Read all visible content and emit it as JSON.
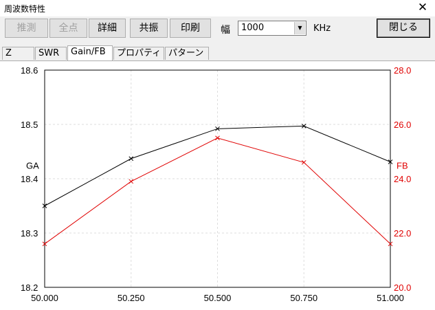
{
  "window": {
    "title": "周波数特性",
    "close_glyph": "✕"
  },
  "toolbar": {
    "buttons": [
      {
        "label": "推測",
        "enabled": false
      },
      {
        "label": "全点",
        "enabled": false
      },
      {
        "label": "詳細",
        "enabled": true
      },
      {
        "label": "共振",
        "enabled": true
      },
      {
        "label": "印刷",
        "enabled": true
      }
    ],
    "width_label": "幅",
    "width_value": "1000",
    "unit_label": "KHz",
    "close_button": "閉じる"
  },
  "tabs": [
    {
      "label": "Z",
      "active": false
    },
    {
      "label": "SWR",
      "active": false
    },
    {
      "label": "Gain/FB",
      "active": true
    },
    {
      "label": "プロパティ",
      "active": false
    },
    {
      "label": "パターン",
      "active": false
    }
  ],
  "chart_data": {
    "type": "line",
    "x": [
      50.0,
      50.25,
      50.5,
      50.75,
      51.0
    ],
    "x_tick_labels": [
      "50.000",
      "50.250",
      "50.500",
      "50.750",
      "51.000"
    ],
    "xlim": [
      50.0,
      51.0
    ],
    "series": [
      {
        "name": "GA",
        "axis": "left",
        "color": "#000000",
        "values": [
          18.35,
          18.437,
          18.492,
          18.497,
          18.431
        ]
      },
      {
        "name": "FB",
        "axis": "right",
        "color": "#e00000",
        "values": [
          21.6,
          23.9,
          25.5,
          24.6,
          21.6
        ]
      }
    ],
    "ylabel_left": "GA",
    "ylabel_right": "FB",
    "ylim_left": [
      18.2,
      18.6
    ],
    "ylim_right": [
      20.0,
      28.0
    ],
    "y_left_tick_labels": [
      "18.2",
      "18.3",
      "18.4",
      "18.5",
      "18.6"
    ],
    "y_right_tick_labels": [
      "20.0",
      "22.0",
      "24.0",
      "26.0",
      "28.0"
    ],
    "grid": true,
    "marker": "x"
  },
  "colors": {
    "left_axis": "#000000",
    "right_axis": "#e00000",
    "grid": "#dddddd"
  }
}
